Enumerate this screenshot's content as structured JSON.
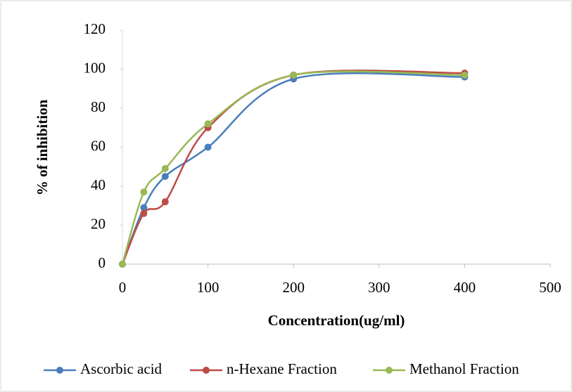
{
  "chart_data": {
    "type": "line",
    "smooth": true,
    "x_label": "Concentration(ug/ml)",
    "y_label": "% of inhibition",
    "x": [
      0,
      25,
      50,
      100,
      200,
      400
    ],
    "series": [
      {
        "name": "Ascorbic acid",
        "color": "#4a7ebb",
        "values": [
          0,
          29,
          45,
          60,
          95,
          96
        ]
      },
      {
        "name": "n-Hexane Fraction",
        "color": "#be4b48",
        "values": [
          0,
          26,
          32,
          70,
          97,
          98
        ]
      },
      {
        "name": "Methanol Fraction",
        "color": "#98b954",
        "values": [
          0,
          37,
          49,
          72,
          97,
          97
        ]
      }
    ],
    "xlim": [
      0,
      500
    ],
    "xticks": [
      0,
      100,
      200,
      300,
      400,
      500
    ],
    "ylim": [
      0,
      120
    ],
    "yticks": [
      0,
      20,
      40,
      60,
      80,
      100,
      120
    ],
    "legend": "bottom"
  }
}
